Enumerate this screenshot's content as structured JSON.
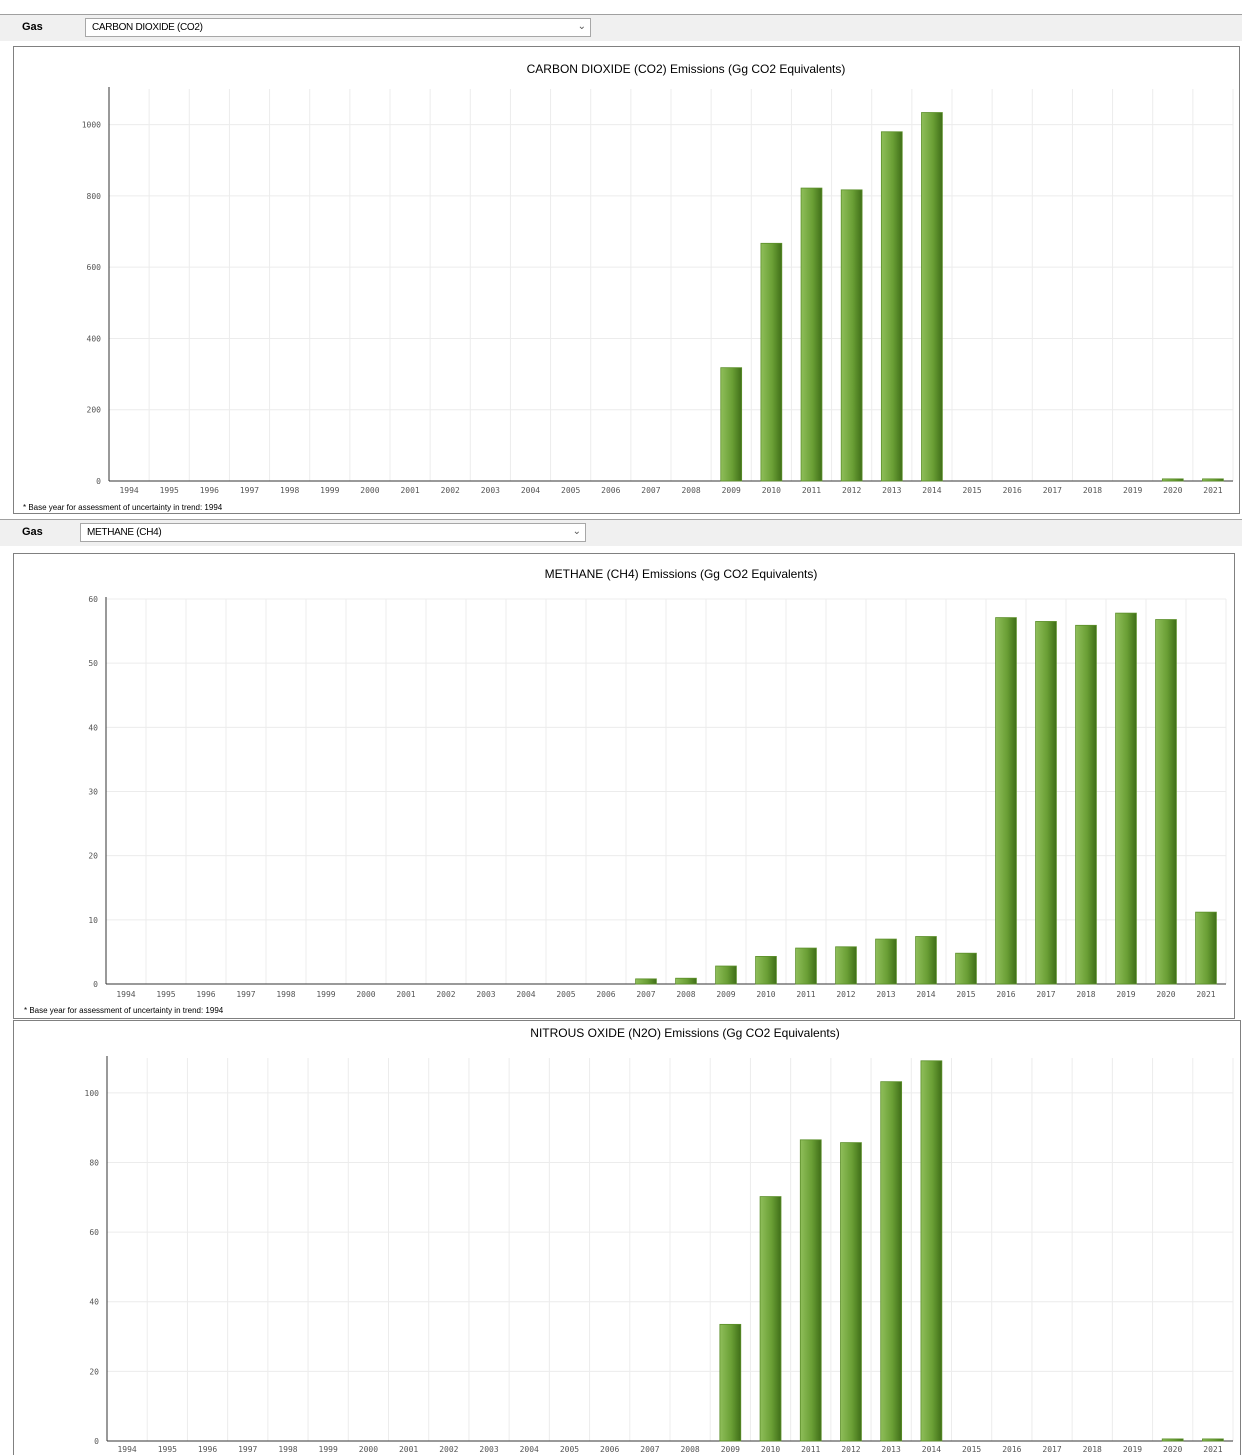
{
  "gas_selectors": [
    {
      "label": "Gas",
      "value": "CARBON DIOXIDE (CO2)"
    },
    {
      "label": "Gas",
      "value": "METHANE (CH4)"
    }
  ],
  "footnote": "* Base year for assessment of uncertainty in trend: 1994",
  "bar_color": "#5c8f2a",
  "chart_data": [
    {
      "type": "bar",
      "title": "CARBON DIOXIDE (CO2) Emissions (Gg CO2 Equivalents)",
      "xlabel": "",
      "ylabel": "",
      "ylim": [
        0,
        1100
      ],
      "yticks": [
        0,
        200,
        400,
        600,
        800,
        1000
      ],
      "grid": true,
      "categories": [
        "1994",
        "1995",
        "1996",
        "1997",
        "1998",
        "1999",
        "2000",
        "2001",
        "2002",
        "2003",
        "2004",
        "2005",
        "2006",
        "2007",
        "2008",
        "2009",
        "2010",
        "2011",
        "2012",
        "2013",
        "2014",
        "2015",
        "2016",
        "2017",
        "2018",
        "2019",
        "2020",
        "2021"
      ],
      "values": [
        0,
        0,
        0,
        0,
        0,
        0,
        0,
        0,
        0,
        0,
        0,
        0,
        0,
        0,
        0,
        318,
        667,
        822,
        817,
        980,
        1034,
        0,
        0,
        0,
        0,
        0,
        6,
        6
      ]
    },
    {
      "type": "bar",
      "title": "METHANE (CH4) Emissions (Gg CO2 Equivalents)",
      "xlabel": "",
      "ylabel": "",
      "ylim": [
        0,
        60
      ],
      "yticks": [
        0,
        10,
        20,
        30,
        40,
        50,
        60
      ],
      "grid": true,
      "categories": [
        "1994",
        "1995",
        "1996",
        "1997",
        "1998",
        "1999",
        "2000",
        "2001",
        "2002",
        "2003",
        "2004",
        "2005",
        "2006",
        "2007",
        "2008",
        "2009",
        "2010",
        "2011",
        "2012",
        "2013",
        "2014",
        "2015",
        "2016",
        "2017",
        "2018",
        "2019",
        "2020",
        "2021"
      ],
      "values": [
        0,
        0,
        0,
        0,
        0,
        0,
        0,
        0,
        0,
        0,
        0,
        0,
        0,
        0.8,
        0.9,
        2.8,
        4.3,
        5.6,
        5.8,
        7.0,
        7.4,
        4.8,
        57.1,
        56.5,
        55.9,
        57.8,
        56.8,
        11.2
      ]
    },
    {
      "type": "bar",
      "title": "NITROUS OXIDE (N2O) Emissions (Gg CO2 Equivalents)",
      "xlabel": "",
      "ylabel": "",
      "ylim": [
        0,
        110
      ],
      "yticks": [
        0,
        20,
        40,
        60,
        80,
        100
      ],
      "grid": true,
      "categories": [
        "1994",
        "1995",
        "1996",
        "1997",
        "1998",
        "1999",
        "2000",
        "2001",
        "2002",
        "2003",
        "2004",
        "2005",
        "2006",
        "2007",
        "2008",
        "2009",
        "2010",
        "2011",
        "2012",
        "2013",
        "2014",
        "2015",
        "2016",
        "2017",
        "2018",
        "2019",
        "2020",
        "2021"
      ],
      "values": [
        0,
        0,
        0,
        0,
        0,
        0,
        0,
        0,
        0,
        0,
        0,
        0,
        0,
        0,
        0,
        33.5,
        70.2,
        86.5,
        85.7,
        103.2,
        109.2,
        0,
        0,
        0,
        0,
        0,
        0.6,
        0.6
      ]
    }
  ]
}
